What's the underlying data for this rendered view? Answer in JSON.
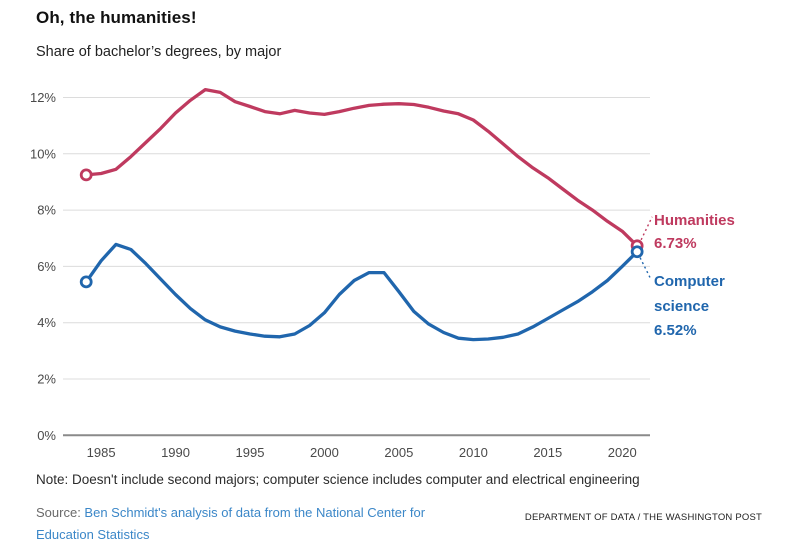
{
  "header": {
    "title": "Oh, the humanities!",
    "subtitle": "Share of bachelor’s degrees, by major"
  },
  "chart_data": {
    "type": "line",
    "title": "Oh, the humanities!",
    "subtitle": "Share of bachelor’s degrees, by major",
    "xlabel": "",
    "ylabel": "",
    "ylim": [
      0,
      12.6
    ],
    "grid": "horizontal",
    "legend_position": "end-of-line labels",
    "x": [
      1984,
      1985,
      1986,
      1987,
      1988,
      1989,
      1990,
      1991,
      1992,
      1993,
      1994,
      1995,
      1996,
      1997,
      1998,
      1999,
      2000,
      2001,
      2002,
      2003,
      2004,
      2005,
      2006,
      2007,
      2008,
      2009,
      2010,
      2011,
      2012,
      2013,
      2014,
      2015,
      2016,
      2017,
      2018,
      2019,
      2020,
      2021
    ],
    "x_tick_values": [
      1985,
      1990,
      1995,
      2000,
      2005,
      2010,
      2015,
      2020
    ],
    "x_tick_labels": [
      "1985",
      "1990",
      "1995",
      "2000",
      "2005",
      "2010",
      "2015",
      "2020"
    ],
    "y_tick_values": [
      0,
      2,
      4,
      6,
      8,
      10,
      12
    ],
    "y_tick_labels": [
      "0%",
      "2%",
      "4%",
      "6%",
      "8%",
      "10%",
      "12%"
    ],
    "series": [
      {
        "name": "Humanities",
        "color": "#bf3a5f",
        "end_value_label": "6.73%",
        "values": [
          9.25,
          9.3,
          9.45,
          9.9,
          10.4,
          10.9,
          11.45,
          11.9,
          12.28,
          12.18,
          11.85,
          11.68,
          11.5,
          11.42,
          11.54,
          11.45,
          11.4,
          11.5,
          11.62,
          11.72,
          11.76,
          11.78,
          11.75,
          11.65,
          11.52,
          11.42,
          11.2,
          10.8,
          10.35,
          9.9,
          9.5,
          9.15,
          8.75,
          8.35,
          8.0,
          7.6,
          7.25,
          6.73
        ]
      },
      {
        "name": "Computer science",
        "color": "#2066ad",
        "end_value_label": "6.52%",
        "values": [
          5.45,
          6.2,
          6.78,
          6.6,
          6.1,
          5.55,
          5.0,
          4.5,
          4.1,
          3.85,
          3.7,
          3.6,
          3.52,
          3.5,
          3.6,
          3.9,
          4.35,
          5.0,
          5.5,
          5.78,
          5.78,
          5.1,
          4.4,
          3.95,
          3.65,
          3.45,
          3.4,
          3.42,
          3.48,
          3.6,
          3.85,
          4.15,
          4.45,
          4.75,
          5.1,
          5.5,
          6.0,
          6.52
        ]
      }
    ]
  },
  "annotations": {
    "humanities": {
      "label": "Humanities",
      "value": "6.73%"
    },
    "computer_science": {
      "label": "Computer\nscience",
      "value": "6.52%"
    }
  },
  "footer": {
    "note": "Note: Doesn't include second majors; computer science includes computer and electrical engineering",
    "source_prefix": "Source: ",
    "source_link": "Ben Schmidt's analysis of data from the National Center for Education Statistics",
    "credit": "DEPARTMENT OF DATA / THE WASHINGTON POST"
  },
  "colors": {
    "humanities": "#bf3a5f",
    "computer_science": "#2066ad",
    "gridline": "#dcdcdc",
    "axis": "#8a8a8a",
    "tick_label": "#4a4a4a",
    "link": "#3b87c8"
  }
}
